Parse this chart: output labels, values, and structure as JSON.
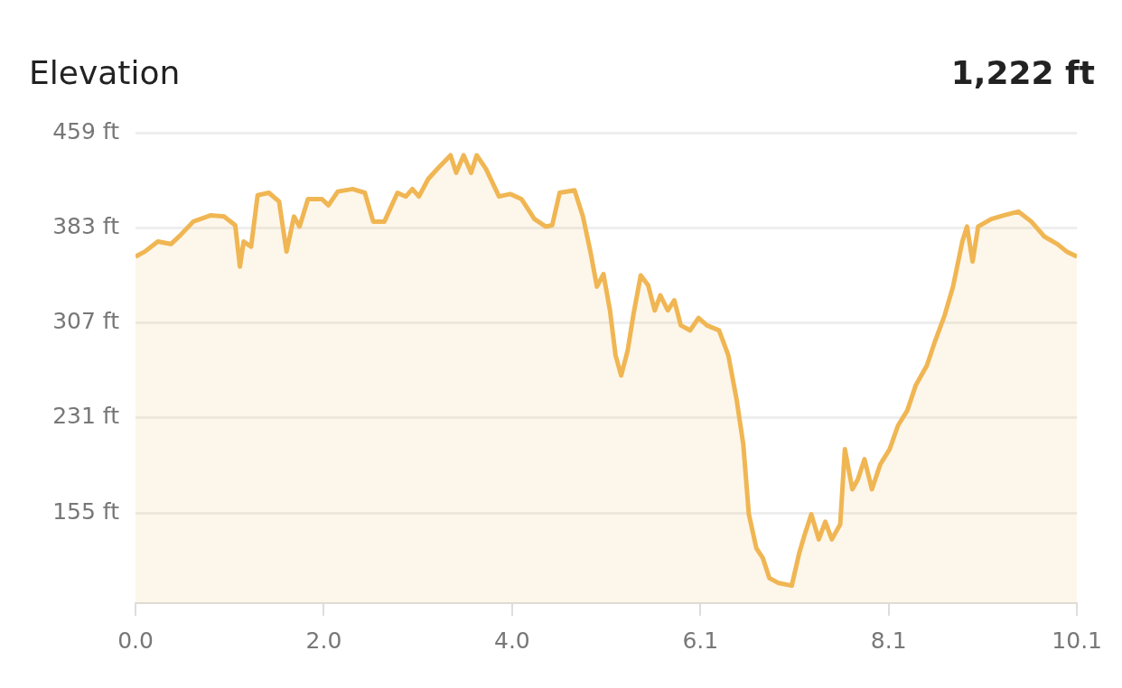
{
  "chart_data": {
    "type": "area",
    "title": "Elevation",
    "annotations": [
      "1,222 ft"
    ],
    "x": [
      0,
      0.1,
      0.24,
      0.38,
      0.48,
      0.62,
      0.81,
      0.95,
      1.07,
      1.12,
      1.16,
      1.24,
      1.31,
      1.43,
      1.54,
      1.62,
      1.7,
      1.76,
      1.85,
      2.0,
      2.07,
      2.17,
      2.33,
      2.46,
      2.55,
      2.67,
      2.81,
      2.9,
      2.97,
      3.04,
      3.14,
      3.25,
      3.38,
      3.44,
      3.52,
      3.6,
      3.66,
      3.76,
      3.9,
      4.02,
      4.14,
      4.28,
      4.4,
      4.47,
      4.55,
      4.71,
      4.8,
      4.88,
      4.95,
      5.02,
      5.09,
      5.15,
      5.21,
      5.28,
      5.34,
      5.42,
      5.5,
      5.57,
      5.63,
      5.71,
      5.78,
      5.85,
      5.95,
      6.04,
      6.13,
      6.26,
      6.36,
      6.45,
      6.52,
      6.58,
      6.66,
      6.73,
      6.8,
      6.9,
      7.04,
      7.12,
      7.18,
      7.25,
      7.33,
      7.4,
      7.47,
      7.56,
      7.61,
      7.69,
      7.75,
      7.82,
      7.9,
      7.99,
      8.09,
      8.18,
      8.28,
      8.37,
      8.49,
      8.58,
      8.68,
      8.77,
      8.87,
      8.92,
      8.98,
      9.04,
      9.18,
      9.32,
      9.47,
      9.61,
      9.75,
      9.89,
      9.99,
      10.1
    ],
    "series": [
      {
        "color": "#f0b653",
        "values": [
          360,
          364,
          372,
          370,
          377,
          388,
          393,
          392,
          385,
          352,
          372,
          368,
          409,
          411,
          404,
          364,
          392,
          384,
          406,
          406,
          401,
          412,
          414,
          411,
          388,
          388,
          411,
          408,
          414,
          408,
          422,
          431,
          441,
          427,
          441,
          427,
          441,
          430,
          408,
          410,
          406,
          390,
          384,
          385,
          411,
          413,
          392,
          364,
          336,
          346,
          317,
          281,
          265,
          285,
          313,
          345,
          337,
          317,
          329,
          317,
          325,
          305,
          301,
          311,
          305,
          301,
          281,
          245,
          210,
          154,
          127,
          119,
          103,
          99,
          97,
          123,
          138,
          154,
          134,
          148,
          134,
          146,
          206,
          174,
          182,
          198,
          174,
          194,
          206,
          225,
          237,
          257,
          273,
          293,
          313,
          336,
          372,
          384,
          356,
          384,
          390,
          393,
          396,
          388,
          376,
          370,
          364,
          360
        ]
      }
    ],
    "xlim": [
      0,
      10.1
    ],
    "ylim": [
      83,
      459
    ],
    "xticks": [
      {
        "value": 0,
        "label": "0.0"
      },
      {
        "value": 2.02,
        "label": "2.0"
      },
      {
        "value": 4.04,
        "label": "4.0"
      },
      {
        "value": 6.06,
        "label": "6.1"
      },
      {
        "value": 8.08,
        "label": "8.1"
      },
      {
        "value": 10.1,
        "label": "10.1"
      }
    ],
    "yticks": [
      {
        "value": 155,
        "label": "155 ft"
      },
      {
        "value": 231,
        "label": "231 ft"
      },
      {
        "value": 307,
        "label": "307 ft"
      },
      {
        "value": 383,
        "label": "383 ft"
      },
      {
        "value": 459,
        "label": "459 ft"
      }
    ],
    "grid": "y",
    "legend": false,
    "marker": "none",
    "line_style": "solid"
  }
}
